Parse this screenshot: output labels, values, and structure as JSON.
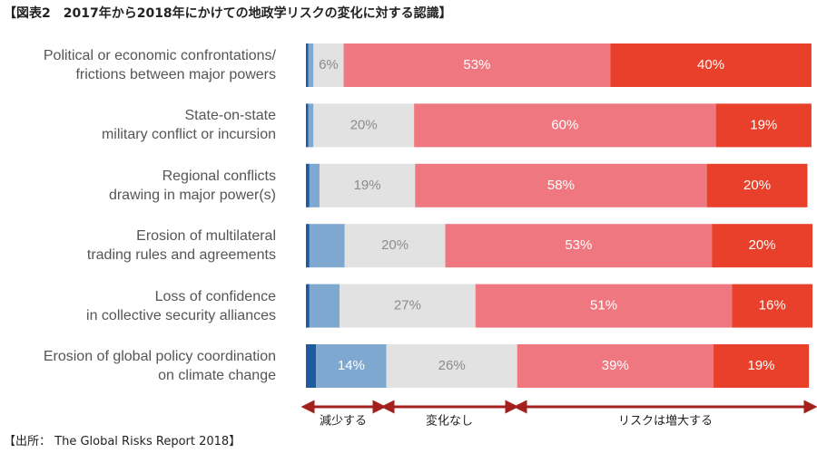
{
  "title": "【図表2　2017年から2018年にかけての地政学リスクの変化に対する認識】",
  "source": "【出所： The Global Risks Report 2018】",
  "chart_data": {
    "type": "stacked-bar-horizontal",
    "categories": [
      "Political or economic confrontations/\nfrictions between major powers",
      "State-on-state \nmilitary conflict or incursion",
      "Regional conflicts\ndrawing in major power(s)",
      "Erosion of multilateral\ntrading rules and agreements",
      "Loss of confidence\nin collective security alliances",
      "Erosion of global policy coordination \non climate change"
    ],
    "series": [
      {
        "color": "#1f5a9e",
        "label_color": "#ffffff",
        "values": [
          0.5,
          0.5,
          0.7,
          0.7,
          0.7,
          2
        ]
      },
      {
        "color": "#7ea8d0",
        "label_color": "#ffffff",
        "values": [
          1,
          1,
          2,
          7,
          6,
          14
        ],
        "value_labels": [
          null,
          null,
          null,
          null,
          null,
          "14%"
        ]
      },
      {
        "color": "#e2e2e3",
        "label_color": "#8c8c8c",
        "values": [
          6,
          20,
          19,
          20,
          27,
          26
        ],
        "value_labels": [
          "6%",
          "20%",
          "19%",
          "20%",
          "27%",
          "26%"
        ]
      },
      {
        "color": "#ef7880",
        "label_color": "#ffffff",
        "values": [
          53,
          60,
          58,
          53,
          51,
          39
        ],
        "value_labels": [
          "53%",
          "60%",
          "58%",
          "53%",
          "51%",
          "39%"
        ]
      },
      {
        "color": "#e8402a",
        "label_color": "#ffffff",
        "values": [
          40,
          19,
          20,
          20,
          16,
          19
        ],
        "value_labels": [
          "40%",
          "19%",
          "20%",
          "20%",
          "16%",
          "19%"
        ]
      }
    ],
    "legend_groups": [
      "減少する",
      "変化なし",
      "リスクは増大する"
    ]
  }
}
